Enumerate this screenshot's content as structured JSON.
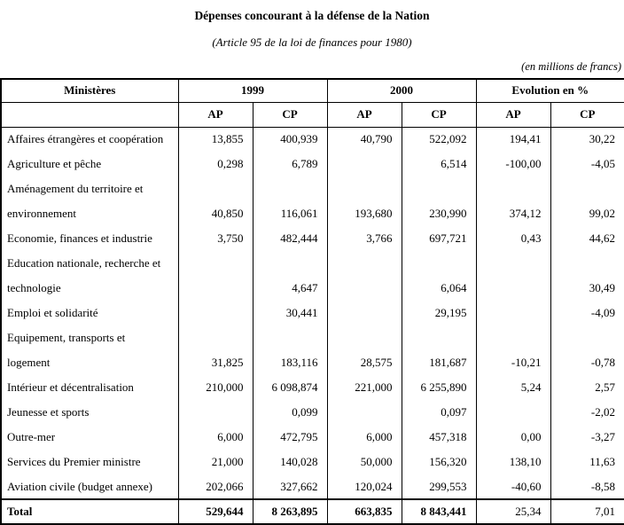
{
  "page": {
    "title": "Dépenses concourant à la défense de la Nation",
    "subtitle": "(Article 95 de la loi de finances pour 1980)",
    "units_note": "(en millions de francs)"
  },
  "table": {
    "headers": {
      "ministries": "Ministères",
      "year1": "1999",
      "year2": "2000",
      "evolution": "Evolution en %",
      "sub": [
        "AP",
        "CP",
        "AP",
        "CP",
        "AP",
        "CP"
      ]
    },
    "rows": [
      {
        "label": "Affaires étrangères et coopération",
        "values": [
          "13,855",
          "400,939",
          "40,790",
          "522,092",
          "194,41",
          "30,22"
        ]
      },
      {
        "label": "Agriculture et pêche",
        "values": [
          "0,298",
          "6,789",
          "",
          "6,514",
          "-100,00",
          "-4,05"
        ]
      },
      {
        "label": "Aménagement du territoire et",
        "values": [
          "",
          "",
          "",
          "",
          "",
          ""
        ]
      },
      {
        "label": "environnement",
        "values": [
          "40,850",
          "116,061",
          "193,680",
          "230,990",
          "374,12",
          "99,02"
        ]
      },
      {
        "label": "Economie, finances et industrie",
        "values": [
          "3,750",
          "482,444",
          "3,766",
          "697,721",
          "0,43",
          "44,62"
        ]
      },
      {
        "label": "Education nationale, recherche et",
        "values": [
          "",
          "",
          "",
          "",
          "",
          ""
        ]
      },
      {
        "label": "technologie",
        "values": [
          "",
          "4,647",
          "",
          "6,064",
          "",
          "30,49"
        ]
      },
      {
        "label": "Emploi et solidarité",
        "values": [
          "",
          "30,441",
          "",
          "29,195",
          "",
          "-4,09"
        ]
      },
      {
        "label": "Equipement, transports et",
        "values": [
          "",
          "",
          "",
          "",
          "",
          ""
        ]
      },
      {
        "label": "logement",
        "values": [
          "31,825",
          "183,116",
          "28,575",
          "181,687",
          "-10,21",
          "-0,78"
        ]
      },
      {
        "label": "Intérieur et décentralisation",
        "values": [
          "210,000",
          "6 098,874",
          "221,000",
          "6 255,890",
          "5,24",
          "2,57"
        ]
      },
      {
        "label": "Jeunesse et sports",
        "values": [
          "",
          "0,099",
          "",
          "0,097",
          "",
          "-2,02"
        ]
      },
      {
        "label": "Outre-mer",
        "values": [
          "6,000",
          "472,795",
          "6,000",
          "457,318",
          "0,00",
          "-3,27"
        ]
      },
      {
        "label": "Services du Premier ministre",
        "values": [
          "21,000",
          "140,028",
          "50,000",
          "156,320",
          "138,10",
          "11,63"
        ]
      },
      {
        "label": "Aviation civile (budget annexe)",
        "values": [
          "202,066",
          "327,662",
          "120,024",
          "299,553",
          "-40,60",
          "-8,58"
        ]
      }
    ],
    "total": {
      "label": "Total",
      "values": [
        "529,644",
        "8 263,895",
        "663,835",
        "8 843,441",
        "25,34",
        "7,01"
      ]
    }
  }
}
